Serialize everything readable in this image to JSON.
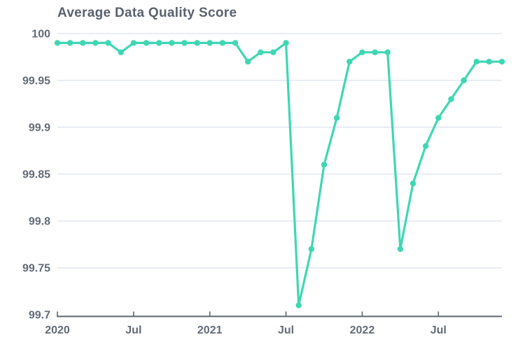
{
  "chart_data": {
    "type": "line",
    "title": "Average Data Quality Score",
    "xlabel": "",
    "ylabel": "",
    "ylim": [
      99.7,
      100
    ],
    "grid": true,
    "legend": false,
    "categories": [
      "Jan 2020",
      "Feb 2020",
      "Mar 2020",
      "Apr 2020",
      "May 2020",
      "Jun 2020",
      "Jul 2020",
      "Aug 2020",
      "Sep 2020",
      "Oct 2020",
      "Nov 2020",
      "Dec 2020",
      "Jan 2021",
      "Feb 2021",
      "Mar 2021",
      "Apr 2021",
      "May 2021",
      "Jun 2021",
      "Jul 2021",
      "Aug 2021",
      "Sep 2021",
      "Oct 2021",
      "Nov 2021",
      "Dec 2021",
      "Jan 2022",
      "Feb 2022",
      "Mar 2022",
      "Apr 2022",
      "May 2022",
      "Jun 2022",
      "Jul 2022",
      "Aug 2022",
      "Sep 2022",
      "Oct 2022",
      "Nov 2022",
      "Dec 2022"
    ],
    "series": [
      {
        "name": "Average Data Quality Score",
        "values": [
          99.99,
          99.99,
          99.99,
          99.99,
          99.99,
          99.98,
          99.99,
          99.99,
          99.99,
          99.99,
          99.99,
          99.99,
          99.99,
          99.99,
          99.99,
          99.97,
          99.98,
          99.98,
          99.99,
          99.71,
          99.77,
          99.86,
          99.91,
          99.97,
          99.98,
          99.98,
          99.98,
          99.77,
          99.84,
          99.88,
          99.91,
          99.93,
          99.95,
          99.97,
          99.97,
          99.97
        ]
      }
    ],
    "y_ticks": {
      "values": [
        100,
        99.95,
        99.9,
        99.85,
        99.8,
        99.75,
        99.7
      ],
      "labels": [
        "100",
        "99.95",
        "99.9",
        "99.85",
        "99.8",
        "99.75",
        "99.7"
      ]
    },
    "x_ticks": {
      "positions": [
        0,
        6,
        12,
        18,
        24,
        30
      ],
      "labels": [
        "2020",
        "Jul",
        "2021",
        "Jul",
        "2022",
        "Jul"
      ]
    },
    "colors": {
      "line": "#3fd7b3",
      "marker": "#3fd7b3",
      "grid": "#e9ecf3",
      "axis": "#5d646d",
      "tick_text": "#636b77",
      "title_text": "#5a626e",
      "background": "#ffffff"
    }
  }
}
